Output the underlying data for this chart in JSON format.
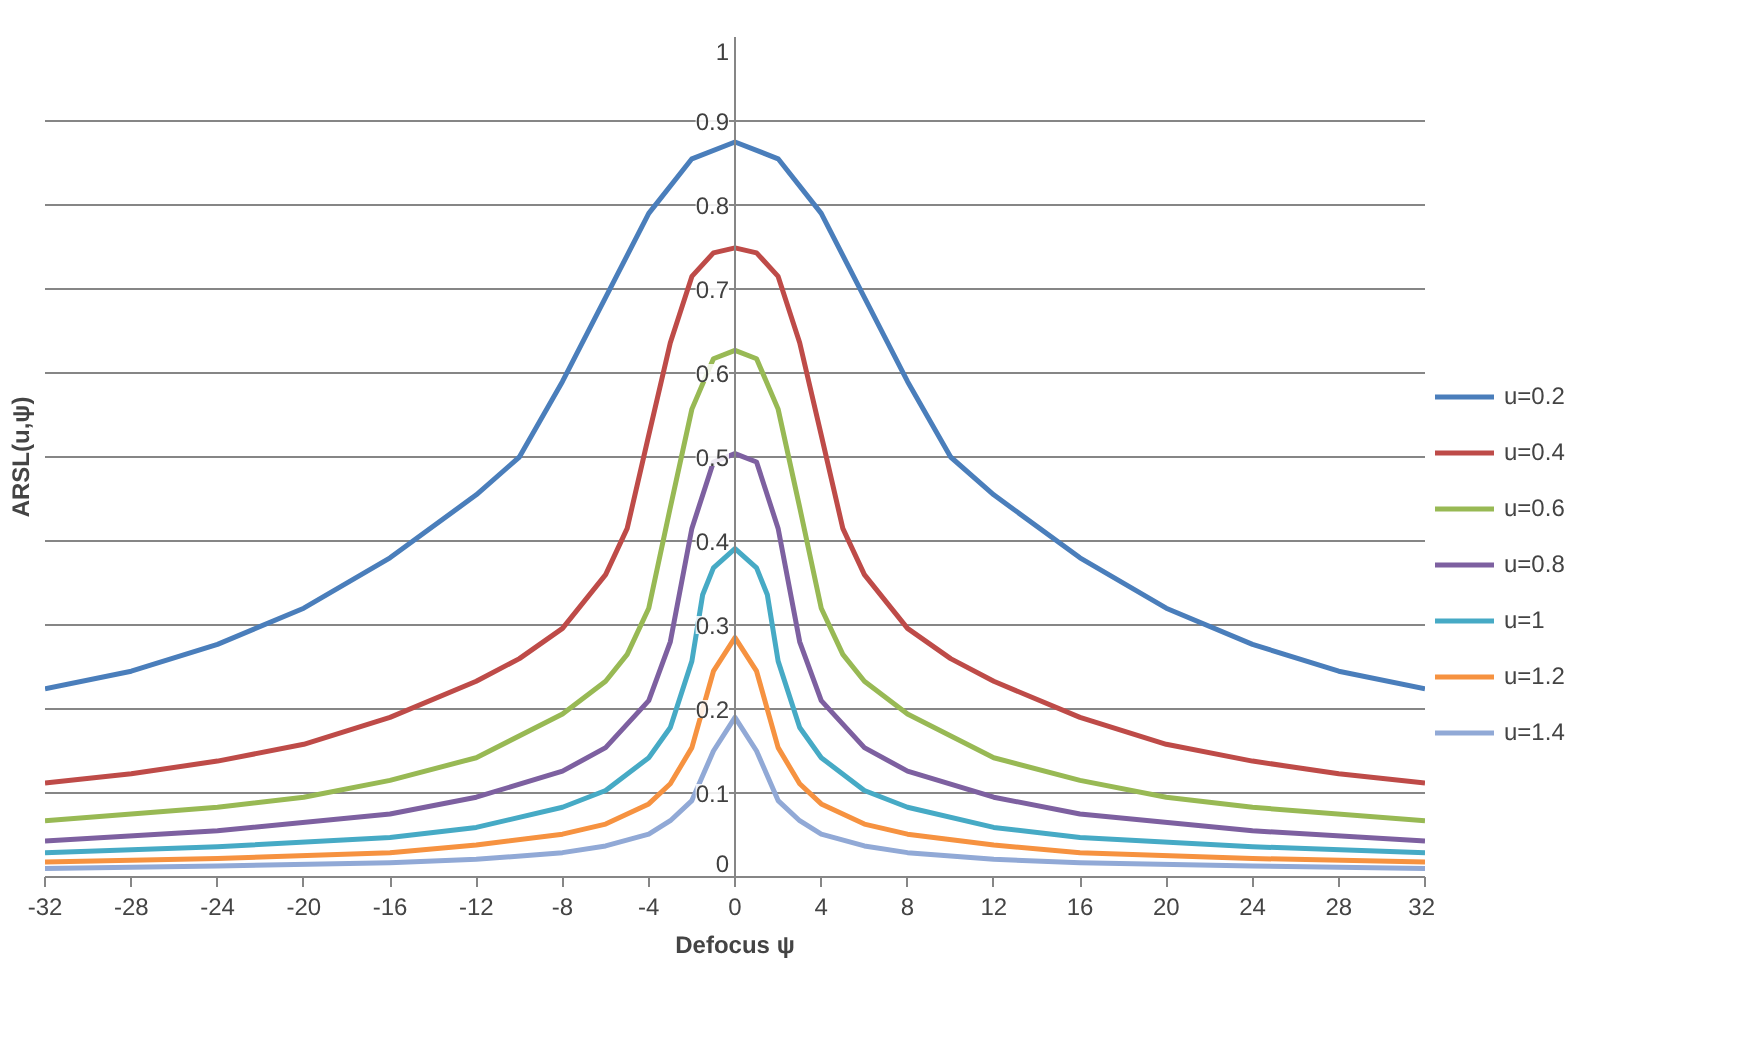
{
  "chart_data": {
    "type": "line",
    "xlabel": "Defocus ψ",
    "ylabel": "ARSL(u,ψ)",
    "xlim": [
      -32,
      32
    ],
    "xticks": [
      -32,
      -28,
      -24,
      -20,
      -16,
      -12,
      -8,
      -4,
      0,
      4,
      8,
      12,
      16,
      20,
      24,
      28,
      32
    ],
    "ylim": [
      0,
      1
    ],
    "yticks": [
      0,
      0.1,
      0.2,
      0.3,
      0.4,
      0.5,
      0.6,
      0.7,
      0.8,
      0.9,
      1
    ],
    "grid": "y",
    "legend": "right",
    "marker": "none",
    "line_style": "solid",
    "series": [
      {
        "name": "u=0.2",
        "color": "#4a7ebb",
        "x": [
          -32,
          -28,
          -24,
          -20,
          -16,
          -12,
          -10,
          -8,
          -6,
          -4,
          -2,
          0,
          2,
          4,
          6,
          8,
          10,
          12,
          16,
          20,
          24,
          28,
          32
        ],
        "values": [
          0.224,
          0.245,
          0.277,
          0.32,
          0.38,
          0.455,
          0.5,
          0.59,
          0.69,
          0.79,
          0.855,
          0.875,
          0.855,
          0.79,
          0.69,
          0.59,
          0.5,
          0.455,
          0.38,
          0.32,
          0.277,
          0.245,
          0.224
        ]
      },
      {
        "name": "u=0.4",
        "color": "#be4b48",
        "x": [
          -32,
          -28,
          -24,
          -20,
          -16,
          -12,
          -10,
          -8,
          -6,
          -5,
          -4,
          -3,
          -2,
          -1,
          0,
          1,
          2,
          3,
          4,
          5,
          6,
          8,
          10,
          12,
          16,
          20,
          24,
          28,
          32
        ],
        "values": [
          0.112,
          0.123,
          0.138,
          0.158,
          0.19,
          0.233,
          0.26,
          0.296,
          0.36,
          0.415,
          0.526,
          0.636,
          0.715,
          0.743,
          0.749,
          0.743,
          0.715,
          0.636,
          0.526,
          0.415,
          0.36,
          0.296,
          0.26,
          0.233,
          0.19,
          0.158,
          0.138,
          0.123,
          0.112
        ]
      },
      {
        "name": "u=0.6",
        "color": "#98b954",
        "x": [
          -32,
          -24,
          -20,
          -16,
          -12,
          -8,
          -6,
          -5,
          -4,
          -3,
          -2,
          -1,
          0,
          1,
          2,
          3,
          4,
          5,
          6,
          8,
          12,
          16,
          20,
          24,
          32
        ],
        "values": [
          0.067,
          0.083,
          0.095,
          0.115,
          0.142,
          0.194,
          0.233,
          0.265,
          0.32,
          0.44,
          0.557,
          0.617,
          0.627,
          0.617,
          0.557,
          0.44,
          0.32,
          0.265,
          0.233,
          0.194,
          0.142,
          0.115,
          0.095,
          0.083,
          0.067
        ]
      },
      {
        "name": "u=0.8",
        "color": "#7d60a0",
        "x": [
          -32,
          -24,
          -16,
          -12,
          -8,
          -6,
          -4,
          -3,
          -2,
          -1,
          0,
          1,
          2,
          3,
          4,
          6,
          8,
          12,
          16,
          24,
          32
        ],
        "values": [
          0.043,
          0.055,
          0.075,
          0.095,
          0.126,
          0.154,
          0.21,
          0.28,
          0.415,
          0.494,
          0.504,
          0.494,
          0.415,
          0.28,
          0.21,
          0.154,
          0.126,
          0.095,
          0.075,
          0.055,
          0.043
        ]
      },
      {
        "name": "u=1",
        "color": "#46aac5",
        "x": [
          -32,
          -24,
          -16,
          -12,
          -8,
          -6,
          -4,
          -3,
          -2,
          -1.5,
          -1,
          0,
          1,
          1.5,
          2,
          3,
          4,
          6,
          8,
          12,
          16,
          24,
          32
        ],
        "values": [
          0.029,
          0.036,
          0.047,
          0.059,
          0.083,
          0.103,
          0.142,
          0.178,
          0.257,
          0.336,
          0.368,
          0.391,
          0.368,
          0.336,
          0.257,
          0.178,
          0.142,
          0.103,
          0.083,
          0.059,
          0.047,
          0.036,
          0.029
        ]
      },
      {
        "name": "u=1.2",
        "color": "#f69240",
        "x": [
          -32,
          -24,
          -16,
          -12,
          -8,
          -6,
          -4,
          -3,
          -2,
          -1,
          0,
          1,
          2,
          3,
          4,
          6,
          8,
          12,
          16,
          24,
          32
        ],
        "values": [
          0.018,
          0.022,
          0.029,
          0.038,
          0.051,
          0.063,
          0.087,
          0.111,
          0.154,
          0.245,
          0.285,
          0.245,
          0.154,
          0.111,
          0.087,
          0.063,
          0.051,
          0.038,
          0.029,
          0.022,
          0.018
        ]
      },
      {
        "name": "u=1.4",
        "color": "#91a9d6",
        "x": [
          -32,
          -24,
          -16,
          -12,
          -8,
          -6,
          -4,
          -3,
          -2,
          -1,
          0,
          1,
          2,
          3,
          4,
          6,
          8,
          12,
          16,
          24,
          32
        ],
        "values": [
          0.01,
          0.013,
          0.017,
          0.021,
          0.029,
          0.037,
          0.051,
          0.067,
          0.091,
          0.15,
          0.19,
          0.15,
          0.091,
          0.067,
          0.051,
          0.037,
          0.029,
          0.021,
          0.017,
          0.013,
          0.01
        ]
      }
    ]
  }
}
